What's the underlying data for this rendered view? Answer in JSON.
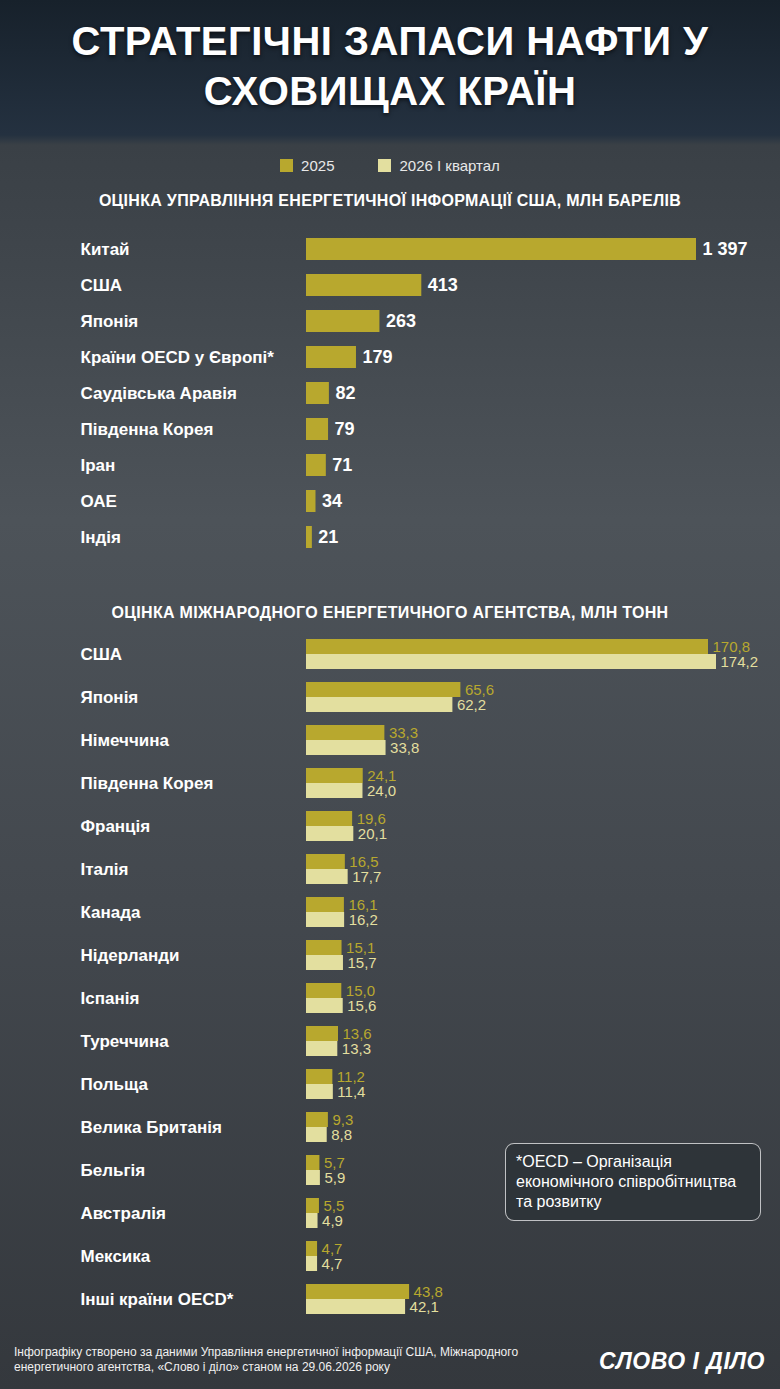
{
  "title": "СТРАТЕГІЧНІ ЗАПАСИ НАФТИ У СХОВИЩАХ КРАЇН",
  "chart_data": [
    {
      "type": "bar",
      "orientation": "horizontal",
      "title": "ОЦІНКА УПРАВЛІННЯ ЕНЕРГЕТИЧНОЇ ІНФОРМАЦІЇ США, МЛН БАРЕЛІВ",
      "categories": [
        "Китай",
        "США",
        "Японія",
        "Країни OECD у Європі*",
        "Саудівська Аравія",
        "Південна Корея",
        "Іран",
        "ОАЕ",
        "Індія"
      ],
      "values": [
        1397,
        413,
        263,
        179,
        82,
        79,
        71,
        34,
        21
      ],
      "value_labels": [
        "1 397",
        "413",
        "263",
        "179",
        "82",
        "79",
        "71",
        "34",
        "21"
      ],
      "color": "#b8a82e",
      "xlim": [
        0,
        1397
      ],
      "data_labels": true,
      "tick_labels": "y",
      "grid": false
    },
    {
      "type": "bar",
      "orientation": "horizontal",
      "title": "ОЦІНКА МІЖНАРОДНОГО ЕНЕРГЕТИЧНОГО АГЕНТСТВА, МЛН ТОНН",
      "categories": [
        "США",
        "Японія",
        "Німеччина",
        "Південна Корея",
        "Франція",
        "Італія",
        "Канада",
        "Нідерланди",
        "Іспанія",
        "Туреччина",
        "Польща",
        "Велика Британія",
        "Бельгія",
        "Австралія",
        "Мексика",
        "Інші країни OECD*"
      ],
      "series": [
        {
          "name": "2025",
          "color": "#b8a82e",
          "values": [
            170.8,
            65.6,
            33.3,
            24.1,
            19.6,
            16.5,
            16.1,
            15.1,
            15.0,
            13.6,
            11.2,
            9.3,
            5.7,
            5.5,
            4.7,
            43.8
          ],
          "value_labels": [
            "170,8",
            "65,6",
            "33,3",
            "24,1",
            "19,6",
            "16,5",
            "16,1",
            "15,1",
            "15,0",
            "13,6",
            "11,2",
            "9,3",
            "5,7",
            "5,5",
            "4,7",
            "43,8"
          ]
        },
        {
          "name": "2026 І квартал",
          "color": "#e3df9f",
          "values": [
            174.2,
            62.2,
            33.8,
            24.0,
            20.1,
            17.7,
            16.2,
            15.7,
            15.6,
            13.3,
            11.4,
            8.8,
            5.9,
            4.9,
            4.7,
            42.1
          ],
          "value_labels": [
            "174,2",
            "62,2",
            "33,8",
            "24,0",
            "20,1",
            "17,7",
            "16,2",
            "15,7",
            "15,6",
            "13,3",
            "11,4",
            "8,8",
            "5,9",
            "4,9",
            "4,7",
            "42,1"
          ]
        }
      ],
      "xlim": [
        0,
        174.2
      ],
      "legend": "top",
      "data_labels": true,
      "tick_labels": "y",
      "grid": false
    }
  ],
  "footnote": "*OECD – Організація економічного співробітництва та розвитку",
  "source": "Інфографіку створено за даними Управління енергетичної інформації США, Міжнародного енергетичного агентства, «Слово і діло» станом на 29.06.2026 року",
  "logo": "СЛОВО І ДІЛО"
}
